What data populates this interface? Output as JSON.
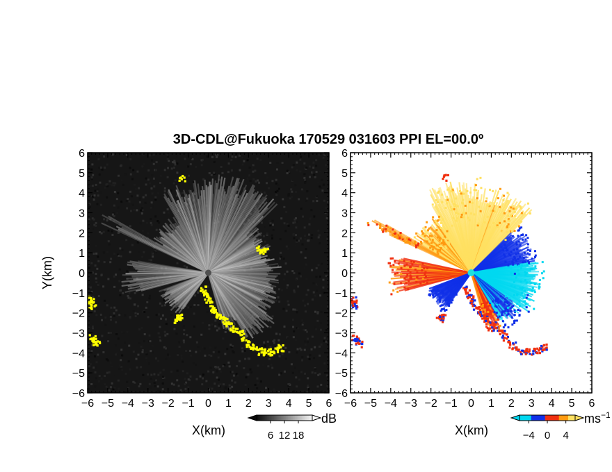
{
  "title": "3D-CDL@Fukuoka 170529 031603 PPI EL=00.0º",
  "colors": {
    "background": "#ffffff",
    "ppi_background": "#161616",
    "echo_yellow": "#ffff00",
    "vel_cyan": "#00d8f0",
    "vel_blue": "#1030e8",
    "vel_red": "#f03010",
    "vel_orange": "#ff9a10",
    "vel_yellow": "#ffe060",
    "radar_site_cyan": "#20e0e0"
  },
  "chart_data": [
    {
      "type": "heatmap",
      "panel": "left",
      "quantity": "echo intensity",
      "xlabel": "X(km)",
      "ylabel": "Y(km)",
      "xlim": [
        -6,
        6
      ],
      "ylim": [
        -6,
        6
      ],
      "x_ticks": [
        "−6",
        "−5",
        "−4",
        "−3",
        "−2",
        "−1",
        "0",
        "1",
        "2",
        "3",
        "4",
        "5",
        "6"
      ],
      "y_ticks": [
        "6",
        "5",
        "4",
        "3",
        "2",
        "1",
        "0",
        "−1",
        "−2",
        "−3",
        "−4",
        "−5",
        "−6"
      ],
      "colorbar": {
        "unit": "dB",
        "ticks": [
          "6",
          "12",
          "18"
        ],
        "tick_values": [
          6,
          12,
          18
        ],
        "range": [
          0,
          24
        ],
        "colormap": "grayscale"
      },
      "sectors": [
        {
          "az_from": 295,
          "az_to": 300,
          "range_km": 6.0
        },
        {
          "az_from": 255,
          "az_to": 280,
          "range_km": 4.3
        },
        {
          "az_from": 300,
          "az_to": 330,
          "range_km": 3.3
        },
        {
          "az_from": 330,
          "az_to": 360,
          "range_km": 4.6
        },
        {
          "az_from": 0,
          "az_to": 45,
          "range_km": 4.9
        },
        {
          "az_from": 45,
          "az_to": 80,
          "range_km": 3.3
        },
        {
          "az_from": 80,
          "az_to": 125,
          "range_km": 3.6
        },
        {
          "az_from": 125,
          "az_to": 150,
          "range_km": 4.1
        },
        {
          "az_from": 150,
          "az_to": 165,
          "range_km": 3.0
        },
        {
          "az_from": 215,
          "az_to": 250,
          "range_km": 2.6
        }
      ],
      "echo_features": [
        {
          "x": [
            -0.3,
            -0.1,
            0.2,
            0.6,
            1.0,
            1.5,
            2.0,
            2.6,
            3.2,
            3.6
          ],
          "y": [
            -0.8,
            -1.2,
            -1.8,
            -2.2,
            -2.6,
            -3.0,
            -3.6,
            -3.9,
            -3.9,
            -3.7
          ]
        },
        {
          "x": [
            -5.9,
            -5.8
          ],
          "y": [
            -1.3,
            -1.6
          ]
        },
        {
          "x": [
            -5.8,
            -5.6
          ],
          "y": [
            -3.2,
            -3.5
          ]
        },
        {
          "x": [
            2.5,
            2.8
          ],
          "y": [
            1.2,
            1.1
          ]
        },
        {
          "x": [
            -1.6,
            -1.5
          ],
          "y": [
            -2.3,
            -2.1
          ]
        },
        {
          "x": [
            -1.35
          ],
          "y": [
            4.8
          ]
        }
      ]
    },
    {
      "type": "heatmap",
      "panel": "right",
      "quantity": "Doppler velocity",
      "xlabel": "X(km)",
      "ylabel": "",
      "xlim": [
        -6,
        6
      ],
      "ylim": [
        -6,
        6
      ],
      "x_ticks": [
        "−6",
        "−5",
        "−4",
        "−3",
        "−2",
        "−1",
        "0",
        "1",
        "2",
        "3",
        "4",
        "5",
        "6"
      ],
      "y_ticks": [
        "6",
        "5",
        "4",
        "3",
        "2",
        "1",
        "0",
        "−1",
        "−2",
        "−3",
        "−4",
        "−5",
        "−6"
      ],
      "colorbar": {
        "unit": "ms",
        "unit_exponent": "−1",
        "ticks": [
          "−4",
          "0",
          "4"
        ],
        "tick_values": [
          -4,
          0,
          4
        ],
        "range": [
          -6,
          6
        ],
        "colormap": "cyan-blue-red-orange-yellow"
      },
      "sectors": [
        {
          "az_from": 295,
          "az_to": 300,
          "range_km": 5.5,
          "velocity": 3.0
        },
        {
          "az_from": 255,
          "az_to": 282,
          "range_km": 4.0,
          "velocity": 1.5
        },
        {
          "az_from": 300,
          "az_to": 330,
          "range_km": 3.3,
          "velocity": 4.0
        },
        {
          "az_from": 330,
          "az_to": 5,
          "range_km": 4.6,
          "velocity": 5.0
        },
        {
          "az_from": 5,
          "az_to": 45,
          "range_km": 4.3,
          "velocity": 4.5
        },
        {
          "az_from": 45,
          "az_to": 80,
          "range_km": 3.2,
          "velocity": -2.0
        },
        {
          "az_from": 80,
          "az_to": 125,
          "range_km": 3.4,
          "velocity": -4.5
        },
        {
          "az_from": 125,
          "az_to": 150,
          "range_km": 3.1,
          "velocity": -2.5
        },
        {
          "az_from": 150,
          "az_to": 165,
          "range_km": 2.9,
          "velocity": 2.0
        },
        {
          "az_from": 215,
          "az_to": 250,
          "range_km": 2.3,
          "velocity": -2.0
        }
      ],
      "echo_features": [
        {
          "x": [
            -0.3,
            -0.1,
            0.2,
            0.6,
            1.0,
            1.5,
            2.0,
            2.6,
            3.2,
            3.6
          ],
          "y": [
            -0.8,
            -1.2,
            -1.8,
            -2.2,
            -2.6,
            -3.0,
            -3.6,
            -3.9,
            -3.9,
            -3.7
          ]
        },
        {
          "x": [
            -5.9,
            -5.8
          ],
          "y": [
            -1.3,
            -1.6
          ]
        },
        {
          "x": [
            -5.8,
            -5.6
          ],
          "y": [
            -3.2,
            -3.5
          ]
        },
        {
          "x": [
            -1.6,
            -1.5
          ],
          "y": [
            -2.3,
            -2.1
          ]
        },
        {
          "x": [
            -1.35
          ],
          "y": [
            4.8
          ]
        }
      ]
    }
  ]
}
